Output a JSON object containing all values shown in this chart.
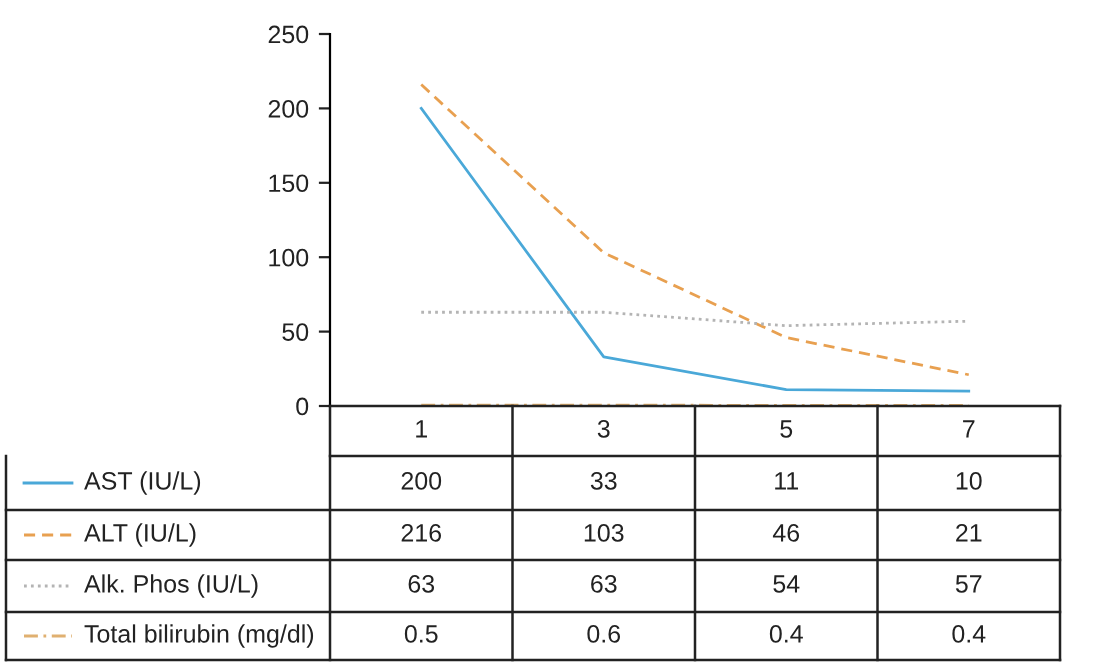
{
  "chart_data": {
    "type": "line",
    "categories": [
      "1",
      "3",
      "5",
      "7"
    ],
    "series": [
      {
        "name": "AST (IU/L)",
        "color": "#4aa8d8",
        "line_style": "solid",
        "values": [
          200,
          33,
          11,
          10
        ]
      },
      {
        "name": "ALT (IU/L)",
        "color": "#e8a050",
        "line_style": "dashed",
        "values": [
          216,
          103,
          46,
          21
        ]
      },
      {
        "name": "Alk. Phos (IU/L)",
        "color": "#b4b4b4",
        "line_style": "dotted",
        "values": [
          63,
          63,
          54,
          57
        ]
      },
      {
        "name": "Total bilirubin (mg/dl)",
        "color": "#e0b070",
        "line_style": "dashdot",
        "values": [
          0.5,
          0.6,
          0.4,
          0.4
        ]
      }
    ],
    "ylim": [
      0,
      250
    ],
    "yticks": [
      0,
      50,
      100,
      150,
      200,
      250
    ],
    "grid": false,
    "legend": "bottom",
    "data_labels": true,
    "marker": "none"
  }
}
